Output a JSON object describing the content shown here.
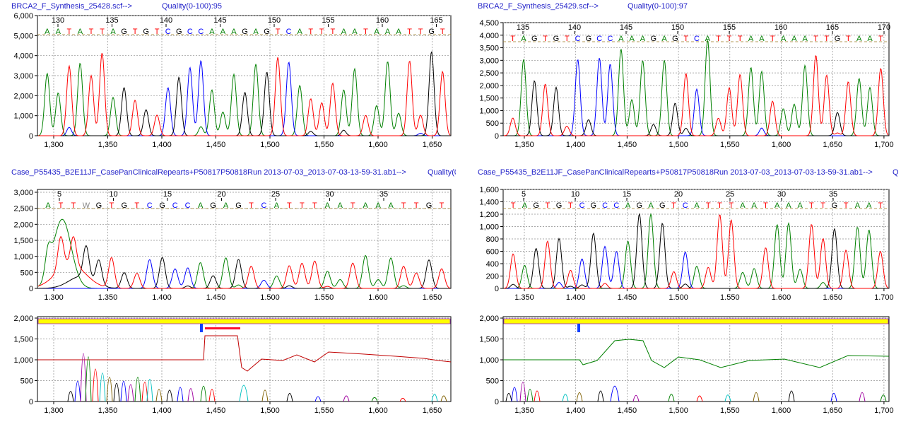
{
  "panels": [
    {
      "id": "p1",
      "header": "BRCA2_F_Synthesis_25428.scf-->",
      "quality": "Quality(0-100):95",
      "bp_ticks": [
        "130",
        "135",
        "140",
        "145",
        "150",
        "155",
        "160",
        "165"
      ],
      "bases": [
        "A",
        "A",
        "T",
        "A",
        "T",
        "T",
        "A",
        "G",
        "T",
        "G",
        "T",
        "C",
        "G",
        "C",
        "C",
        "A",
        "A",
        "A",
        "G",
        "A",
        "G",
        "T",
        "C",
        "A",
        "T",
        "T",
        "T",
        "A",
        "A",
        "T",
        "A",
        "A",
        "A",
        "T",
        "T",
        "G",
        "T"
      ],
      "y_ticks": [
        "0",
        "1,000",
        "2,000",
        "3,000",
        "4,000",
        "5,000",
        "6,000"
      ],
      "x_ticks": [
        "1,300",
        "1,350",
        "1,400",
        "1,450",
        "1,500",
        "1,550",
        "1,600",
        "1,650"
      ]
    },
    {
      "id": "p2",
      "header": "BRCA2_F_Synthesis_25429.scf-->",
      "quality": "Quality(0-100):97",
      "bp_ticks": [
        "135",
        "140",
        "145",
        "150",
        "155",
        "160",
        "165",
        "170"
      ],
      "bases": [
        "T",
        "A",
        "G",
        "T",
        "G",
        "T",
        "C",
        "G",
        "C",
        "C",
        "A",
        "A",
        "A",
        "G",
        "A",
        "G",
        "T",
        "C",
        "A",
        "T",
        "T",
        "T",
        "A",
        "A",
        "T",
        "A",
        "A",
        "A",
        "T",
        "T",
        "G",
        "T",
        "A",
        "A",
        "T"
      ],
      "y_ticks": [
        "0",
        "500",
        "1,000",
        "1,500",
        "2,000",
        "2,500",
        "3,000",
        "3,500",
        "4,000",
        "4,500"
      ],
      "x_ticks": [
        "1,350",
        "1,400",
        "1,450",
        "1,500",
        "1,550",
        "1,600",
        "1,650",
        "1,700"
      ]
    },
    {
      "id": "p3",
      "header": "Case_P55435_B2E11JF_CasePanClinicalRepearts+P50817P50818Run 2013-07-03_2013-07-03-13-59-31.ab1-->",
      "quality": "Quality(0-",
      "bp_ticks": [
        "5",
        "10",
        "15",
        "20",
        "25",
        "30",
        "35"
      ],
      "bases": [
        "A",
        "T",
        "T",
        "W",
        "G",
        "T",
        "G",
        "T",
        "C",
        "G",
        "C",
        "C",
        "A",
        "G",
        "A",
        "G",
        "T",
        "C",
        "A",
        "T",
        "T",
        "T",
        "A",
        "A",
        "T",
        "A",
        "A",
        "A",
        "T",
        "T",
        "G",
        "T"
      ],
      "y_ticks": [
        "0",
        "500",
        "1,000",
        "1,500",
        "2,000",
        "2,500",
        "3,000"
      ],
      "x_ticks": [
        "1,300",
        "1,350",
        "1,400",
        "1,450",
        "1,500",
        "1,550",
        "1,600",
        "1,650"
      ]
    },
    {
      "id": "p4",
      "header": "Case_P55435_B2E11JF_CasePanClinicalRepearts+P50817P50818Run 2013-07-03_2013-07-03-13-59-31.ab1-->",
      "quality": "Q",
      "bp_ticks": [
        "5",
        "10",
        "15",
        "20",
        "25",
        "30",
        "35"
      ],
      "bases": [
        "T",
        "A",
        "G",
        "T",
        "G",
        "T",
        "C",
        "G",
        "C",
        "C",
        "A",
        "G",
        "A",
        "G",
        "T",
        "C",
        "A",
        "T",
        "T",
        "T",
        "A",
        "A",
        "T",
        "A",
        "A",
        "A",
        "T",
        "T",
        "G",
        "T",
        "A",
        "A",
        "T"
      ],
      "y_ticks": [
        "0",
        "200",
        "400",
        "600",
        "800",
        "1,000",
        "1,200",
        "1,400",
        "1,600"
      ],
      "x_ticks": [
        "1,350",
        "1,400",
        "1,450",
        "1,500",
        "1,550",
        "1,600",
        "1,650",
        "1,700"
      ]
    },
    {
      "id": "p5",
      "y_ticks": [
        "0",
        "500",
        "1,000",
        "1,500",
        "2,000"
      ],
      "x_ticks": [
        "1,300",
        "1,350",
        "1,400",
        "1,450",
        "1,500",
        "1,550",
        "1,600",
        "1,650"
      ]
    },
    {
      "id": "p6",
      "y_ticks": [
        "0",
        "500",
        "1,000",
        "1,500",
        "2,000"
      ],
      "x_ticks": [
        "1,350",
        "1,400",
        "1,450",
        "1,500",
        "1,550",
        "1,600",
        "1,650",
        "1,700"
      ]
    }
  ],
  "colors": {
    "A": "#008000",
    "C": "#0000ff",
    "G": "#000000",
    "T": "#ff0000",
    "header": "#1f1fc8",
    "grid": "#8c8c8c",
    "band": "#ffff00",
    "band_edge": "#9f1fc8"
  }
}
